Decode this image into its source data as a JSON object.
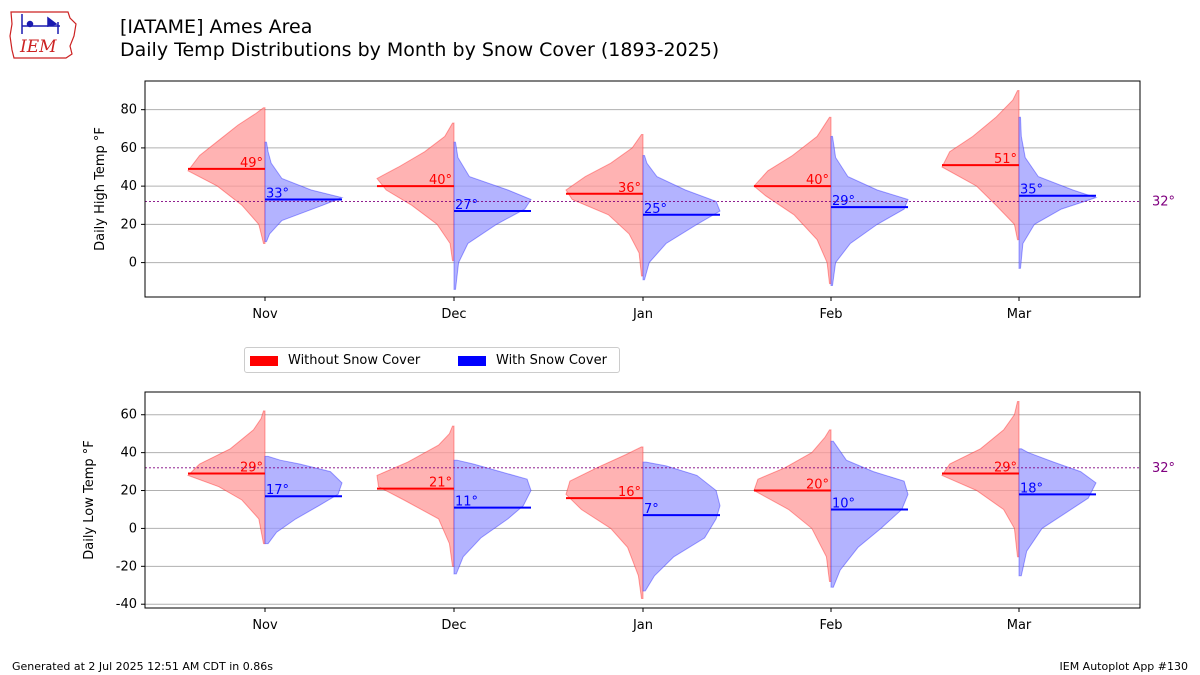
{
  "header": {
    "title_line1": "[IATAME] Ames Area",
    "title_line2": "Daily Temp Distributions by Month by Snow Cover (1893-2025)"
  },
  "logo": {
    "text": "IEM"
  },
  "legend": {
    "items": [
      {
        "label": "Without Snow Cover",
        "color": "#ff0000"
      },
      {
        "label": "With Snow Cover",
        "color": "#0000ff"
      }
    ]
  },
  "footer": {
    "left": "Generated at 2 Jul 2025 12:51 AM CDT in 0.86s",
    "right": "IEM Autoplot App #130"
  },
  "colors": {
    "no_snow_fill": "#ff9999",
    "snow_fill": "#9999ff",
    "no_snow_line": "#ff0000",
    "snow_line": "#0000ff",
    "freezing_line": "#800080"
  },
  "chart_data": [
    {
      "type": "violin",
      "ylabel": "Daily High Temp °F",
      "categories": [
        "Nov",
        "Dec",
        "Jan",
        "Feb",
        "Mar"
      ],
      "ylim": [
        -18,
        95
      ],
      "yticks": [
        0,
        20,
        40,
        60,
        80
      ],
      "grid": true,
      "freezing_line": 32,
      "freezing_label": "32°",
      "series": [
        {
          "name": "Without Snow Cover",
          "side": "left",
          "means": [
            49,
            40,
            36,
            40,
            51
          ],
          "ranges": [
            [
              10,
              81
            ],
            [
              1,
              73
            ],
            [
              -7,
              67
            ],
            [
              -11,
              76
            ],
            [
              12,
              90
            ]
          ],
          "profiles": [
            [
              [
                10,
                0.02
              ],
              [
                20,
                0.08
              ],
              [
                30,
                0.3
              ],
              [
                40,
                0.62
              ],
              [
                48,
                1.0
              ],
              [
                56,
                0.85
              ],
              [
                64,
                0.6
              ],
              [
                72,
                0.35
              ],
              [
                78,
                0.12
              ],
              [
                81,
                0.02
              ]
            ],
            [
              [
                1,
                0.02
              ],
              [
                10,
                0.05
              ],
              [
                20,
                0.22
              ],
              [
                30,
                0.55
              ],
              [
                38,
                0.88
              ],
              [
                44,
                1.0
              ],
              [
                50,
                0.72
              ],
              [
                58,
                0.38
              ],
              [
                66,
                0.12
              ],
              [
                73,
                0.02
              ]
            ],
            [
              [
                -7,
                0.02
              ],
              [
                5,
                0.05
              ],
              [
                15,
                0.18
              ],
              [
                25,
                0.45
              ],
              [
                33,
                0.92
              ],
              [
                38,
                1.0
              ],
              [
                45,
                0.75
              ],
              [
                52,
                0.42
              ],
              [
                60,
                0.14
              ],
              [
                67,
                0.02
              ]
            ],
            [
              [
                -11,
                0.02
              ],
              [
                0,
                0.05
              ],
              [
                12,
                0.18
              ],
              [
                25,
                0.48
              ],
              [
                35,
                0.85
              ],
              [
                40,
                1.0
              ],
              [
                48,
                0.82
              ],
              [
                56,
                0.5
              ],
              [
                66,
                0.18
              ],
              [
                76,
                0.02
              ]
            ],
            [
              [
                12,
                0.02
              ],
              [
                20,
                0.06
              ],
              [
                30,
                0.3
              ],
              [
                40,
                0.55
              ],
              [
                50,
                1.0
              ],
              [
                58,
                0.9
              ],
              [
                66,
                0.6
              ],
              [
                76,
                0.3
              ],
              [
                85,
                0.08
              ],
              [
                90,
                0.02
              ]
            ]
          ]
        },
        {
          "name": "With Snow Cover",
          "side": "right",
          "means": [
            33,
            27,
            25,
            29,
            35
          ],
          "ranges": [
            [
              11,
              63
            ],
            [
              -14,
              63
            ],
            [
              -9,
              56
            ],
            [
              -12,
              66
            ],
            [
              -3,
              76
            ]
          ],
          "profiles": [
            [
              [
                11,
                0.02
              ],
              [
                15,
                0.06
              ],
              [
                22,
                0.22
              ],
              [
                30,
                0.75
              ],
              [
                34,
                1.0
              ],
              [
                38,
                0.6
              ],
              [
                44,
                0.22
              ],
              [
                52,
                0.08
              ],
              [
                58,
                0.04
              ],
              [
                63,
                0.02
              ]
            ],
            [
              [
                -14,
                0.02
              ],
              [
                0,
                0.06
              ],
              [
                10,
                0.18
              ],
              [
                20,
                0.55
              ],
              [
                28,
                0.92
              ],
              [
                33,
                1.0
              ],
              [
                38,
                0.7
              ],
              [
                45,
                0.2
              ],
              [
                55,
                0.05
              ],
              [
                63,
                0.02
              ]
            ],
            [
              [
                -9,
                0.02
              ],
              [
                0,
                0.08
              ],
              [
                10,
                0.3
              ],
              [
                20,
                0.7
              ],
              [
                27,
                1.0
              ],
              [
                32,
                0.95
              ],
              [
                38,
                0.55
              ],
              [
                45,
                0.18
              ],
              [
                52,
                0.05
              ],
              [
                56,
                0.02
              ]
            ],
            [
              [
                -12,
                0.02
              ],
              [
                0,
                0.06
              ],
              [
                10,
                0.25
              ],
              [
                20,
                0.6
              ],
              [
                28,
                0.95
              ],
              [
                33,
                1.0
              ],
              [
                38,
                0.6
              ],
              [
                45,
                0.22
              ],
              [
                55,
                0.06
              ],
              [
                66,
                0.02
              ]
            ],
            [
              [
                -3,
                0.02
              ],
              [
                10,
                0.05
              ],
              [
                20,
                0.2
              ],
              [
                28,
                0.55
              ],
              [
                34,
                1.0
              ],
              [
                38,
                0.7
              ],
              [
                45,
                0.25
              ],
              [
                55,
                0.08
              ],
              [
                66,
                0.03
              ],
              [
                76,
                0.02
              ]
            ]
          ]
        }
      ]
    },
    {
      "type": "violin",
      "ylabel": "Daily Low Temp °F",
      "categories": [
        "Nov",
        "Dec",
        "Jan",
        "Feb",
        "Mar"
      ],
      "ylim": [
        -42,
        72
      ],
      "yticks": [
        -40,
        -20,
        0,
        20,
        40,
        60
      ],
      "grid": true,
      "freezing_line": 32,
      "freezing_label": "32°",
      "series": [
        {
          "name": "Without Snow Cover",
          "side": "left",
          "means": [
            29,
            21,
            16,
            20,
            29
          ],
          "ranges": [
            [
              -8,
              62
            ],
            [
              -20,
              54
            ],
            [
              -37,
              43
            ],
            [
              -28,
              52
            ],
            [
              -15,
              67
            ]
          ],
          "profiles": [
            [
              [
                -8,
                0.02
              ],
              [
                5,
                0.08
              ],
              [
                15,
                0.3
              ],
              [
                22,
                0.6
              ],
              [
                28,
                1.0
              ],
              [
                34,
                0.85
              ],
              [
                42,
                0.45
              ],
              [
                52,
                0.15
              ],
              [
                58,
                0.05
              ],
              [
                62,
                0.02
              ]
            ],
            [
              [
                -20,
                0.02
              ],
              [
                -8,
                0.06
              ],
              [
                5,
                0.2
              ],
              [
                15,
                0.65
              ],
              [
                22,
                0.98
              ],
              [
                28,
                1.0
              ],
              [
                35,
                0.6
              ],
              [
                44,
                0.2
              ],
              [
                50,
                0.06
              ],
              [
                54,
                0.02
              ]
            ],
            [
              [
                -37,
                0.02
              ],
              [
                -25,
                0.06
              ],
              [
                -10,
                0.2
              ],
              [
                0,
                0.42
              ],
              [
                10,
                0.8
              ],
              [
                18,
                1.0
              ],
              [
                25,
                0.95
              ],
              [
                32,
                0.6
              ],
              [
                39,
                0.22
              ],
              [
                43,
                0.02
              ]
            ],
            [
              [
                -28,
                0.02
              ],
              [
                -15,
                0.06
              ],
              [
                0,
                0.25
              ],
              [
                10,
                0.55
              ],
              [
                20,
                1.0
              ],
              [
                26,
                0.95
              ],
              [
                32,
                0.6
              ],
              [
                40,
                0.25
              ],
              [
                48,
                0.08
              ],
              [
                52,
                0.02
              ]
            ],
            [
              [
                -15,
                0.02
              ],
              [
                0,
                0.06
              ],
              [
                10,
                0.2
              ],
              [
                20,
                0.55
              ],
              [
                28,
                1.0
              ],
              [
                34,
                0.9
              ],
              [
                42,
                0.5
              ],
              [
                52,
                0.2
              ],
              [
                60,
                0.06
              ],
              [
                67,
                0.02
              ]
            ]
          ]
        },
        {
          "name": "With Snow Cover",
          "side": "right",
          "means": [
            17,
            11,
            7,
            10,
            18
          ],
          "ranges": [
            [
              -8,
              38
            ],
            [
              -24,
              36
            ],
            [
              -33,
              35
            ],
            [
              -31,
              46
            ],
            [
              -25,
              42
            ]
          ],
          "profiles": [
            [
              [
                -8,
                0.04
              ],
              [
                -2,
                0.15
              ],
              [
                5,
                0.4
              ],
              [
                12,
                0.7
              ],
              [
                18,
                0.95
              ],
              [
                24,
                1.0
              ],
              [
                30,
                0.85
              ],
              [
                34,
                0.45
              ],
              [
                36,
                0.2
              ],
              [
                38,
                0.04
              ]
            ],
            [
              [
                -24,
                0.03
              ],
              [
                -15,
                0.12
              ],
              [
                -5,
                0.35
              ],
              [
                5,
                0.7
              ],
              [
                12,
                0.9
              ],
              [
                20,
                1.0
              ],
              [
                26,
                0.95
              ],
              [
                30,
                0.6
              ],
              [
                34,
                0.25
              ],
              [
                36,
                0.04
              ]
            ],
            [
              [
                -33,
                0.03
              ],
              [
                -25,
                0.15
              ],
              [
                -15,
                0.4
              ],
              [
                -5,
                0.8
              ],
              [
                5,
                0.95
              ],
              [
                12,
                1.0
              ],
              [
                20,
                0.95
              ],
              [
                28,
                0.7
              ],
              [
                33,
                0.3
              ],
              [
                35,
                0.04
              ]
            ],
            [
              [
                -31,
                0.03
              ],
              [
                -22,
                0.12
              ],
              [
                -10,
                0.35
              ],
              [
                0,
                0.65
              ],
              [
                10,
                0.92
              ],
              [
                18,
                1.0
              ],
              [
                25,
                0.95
              ],
              [
                30,
                0.55
              ],
              [
                36,
                0.2
              ],
              [
                46,
                0.03
              ]
            ],
            [
              [
                -25,
                0.03
              ],
              [
                -12,
                0.1
              ],
              [
                0,
                0.3
              ],
              [
                8,
                0.6
              ],
              [
                16,
                0.9
              ],
              [
                24,
                1.0
              ],
              [
                30,
                0.8
              ],
              [
                35,
                0.45
              ],
              [
                40,
                0.12
              ],
              [
                42,
                0.03
              ]
            ]
          ]
        }
      ]
    }
  ]
}
